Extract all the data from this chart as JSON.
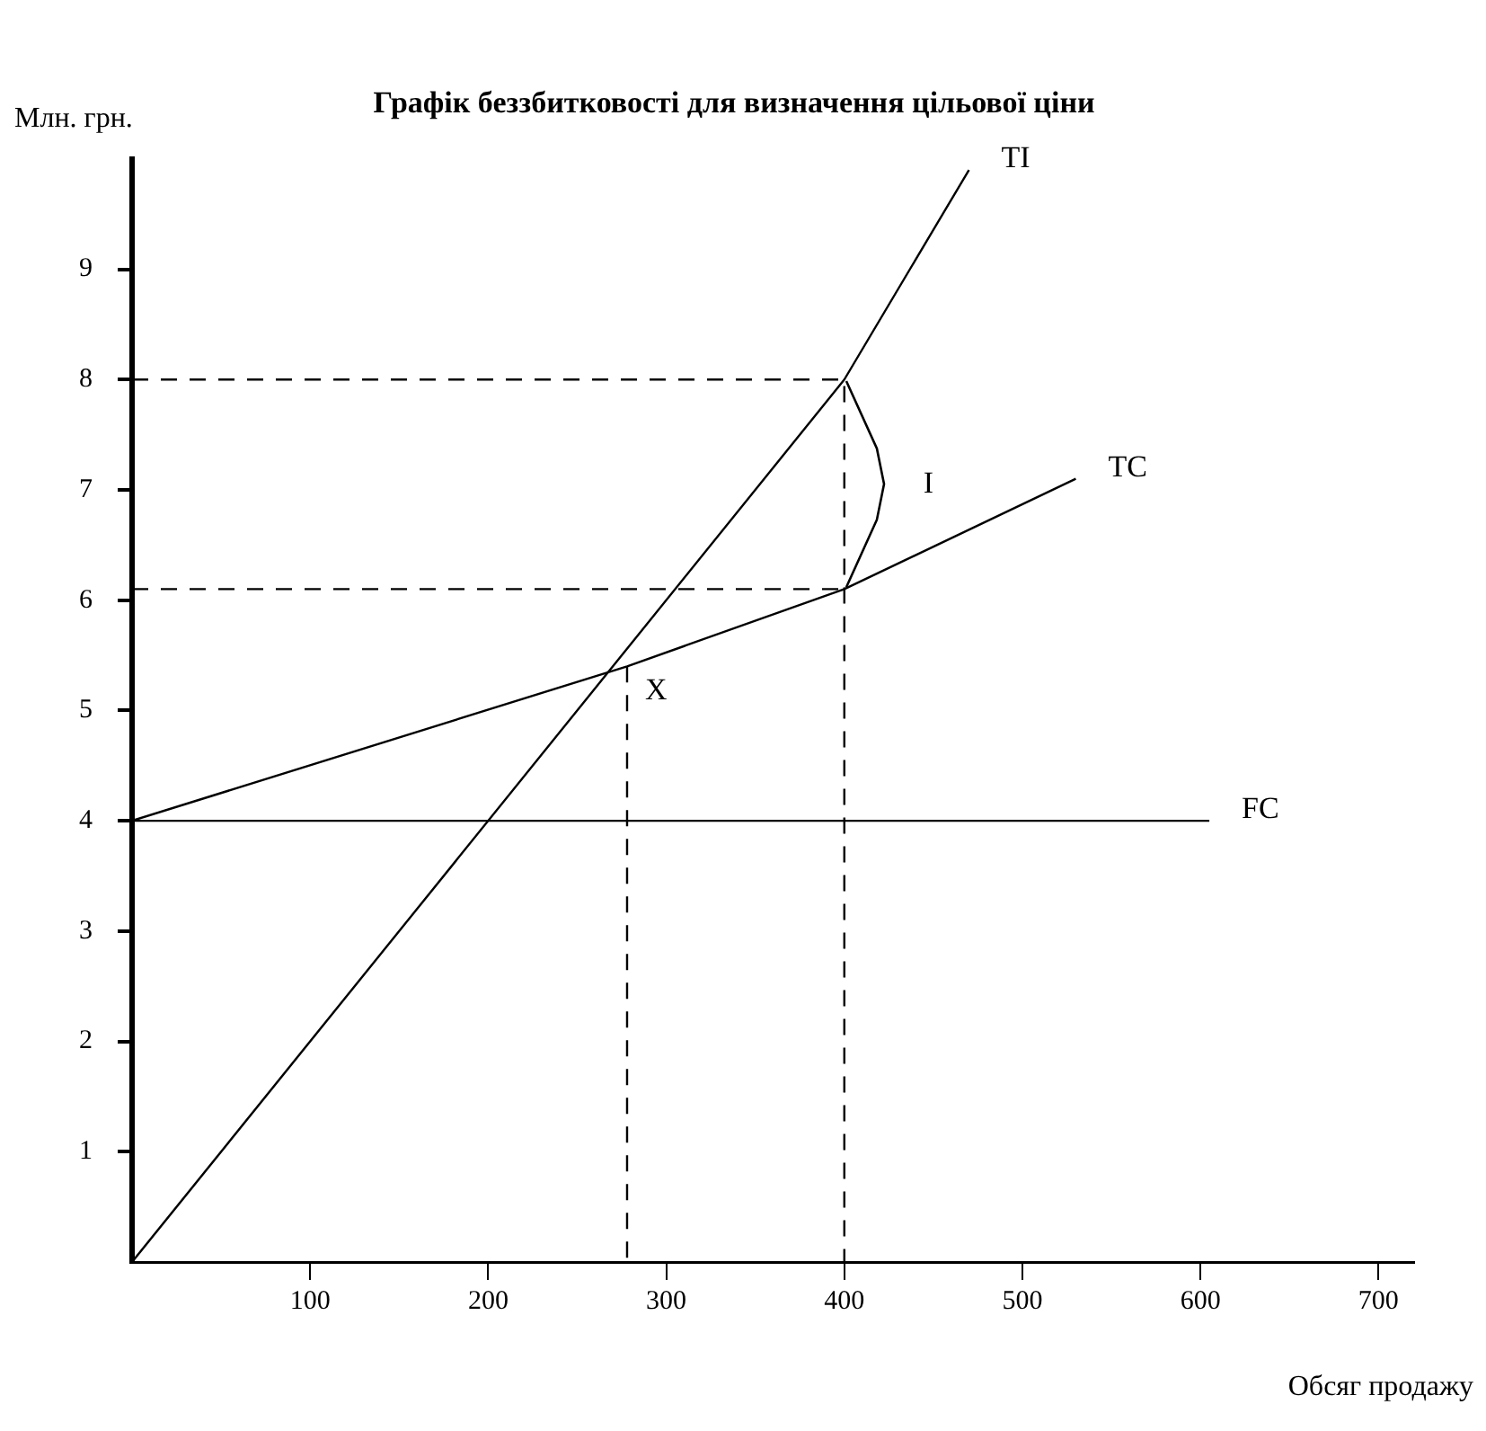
{
  "chart_data": {
    "type": "line",
    "title": "Графік беззбитковості для визначення цільової ціни",
    "xlabel": "Обсяг продажу",
    "ylabel": "Млн. грн.",
    "xlim": [
      0,
      720
    ],
    "xticks": [
      100,
      200,
      300,
      400,
      500,
      600,
      700
    ],
    "ylim": [
      0,
      10
    ],
    "yticks": [
      1,
      2,
      3,
      4,
      5,
      6,
      7,
      8,
      9
    ],
    "grid": false,
    "legend": false,
    "marker": "none",
    "series": [
      {
        "name": "TI",
        "color": "#000000",
        "x": [
          0,
          400,
          470
        ],
        "values": [
          0,
          8,
          9.9
        ]
      },
      {
        "name": "TC",
        "color": "#000000",
        "x": [
          0,
          278,
          400,
          530
        ],
        "values": [
          4,
          5.4,
          6.1,
          7.1
        ]
      },
      {
        "name": "FC",
        "color": "#000000",
        "x": [
          0,
          605
        ],
        "values": [
          4,
          4
        ]
      },
      {
        "color": "#000000",
        "line_style": "dashed",
        "x": [
          0,
          400,
          400
        ],
        "values": [
          8,
          8,
          0
        ]
      },
      {
        "color": "#000000",
        "line_style": "dashed",
        "x": [
          0,
          400
        ],
        "values": [
          6.1,
          6.1
        ]
      },
      {
        "color": "#000000",
        "line_style": "dashed",
        "x": [
          278,
          278
        ],
        "values": [
          5.4,
          0
        ]
      }
    ],
    "annotations": [
      {
        "text": "X",
        "x": 278,
        "y": 5.4
      },
      "I"
    ]
  }
}
